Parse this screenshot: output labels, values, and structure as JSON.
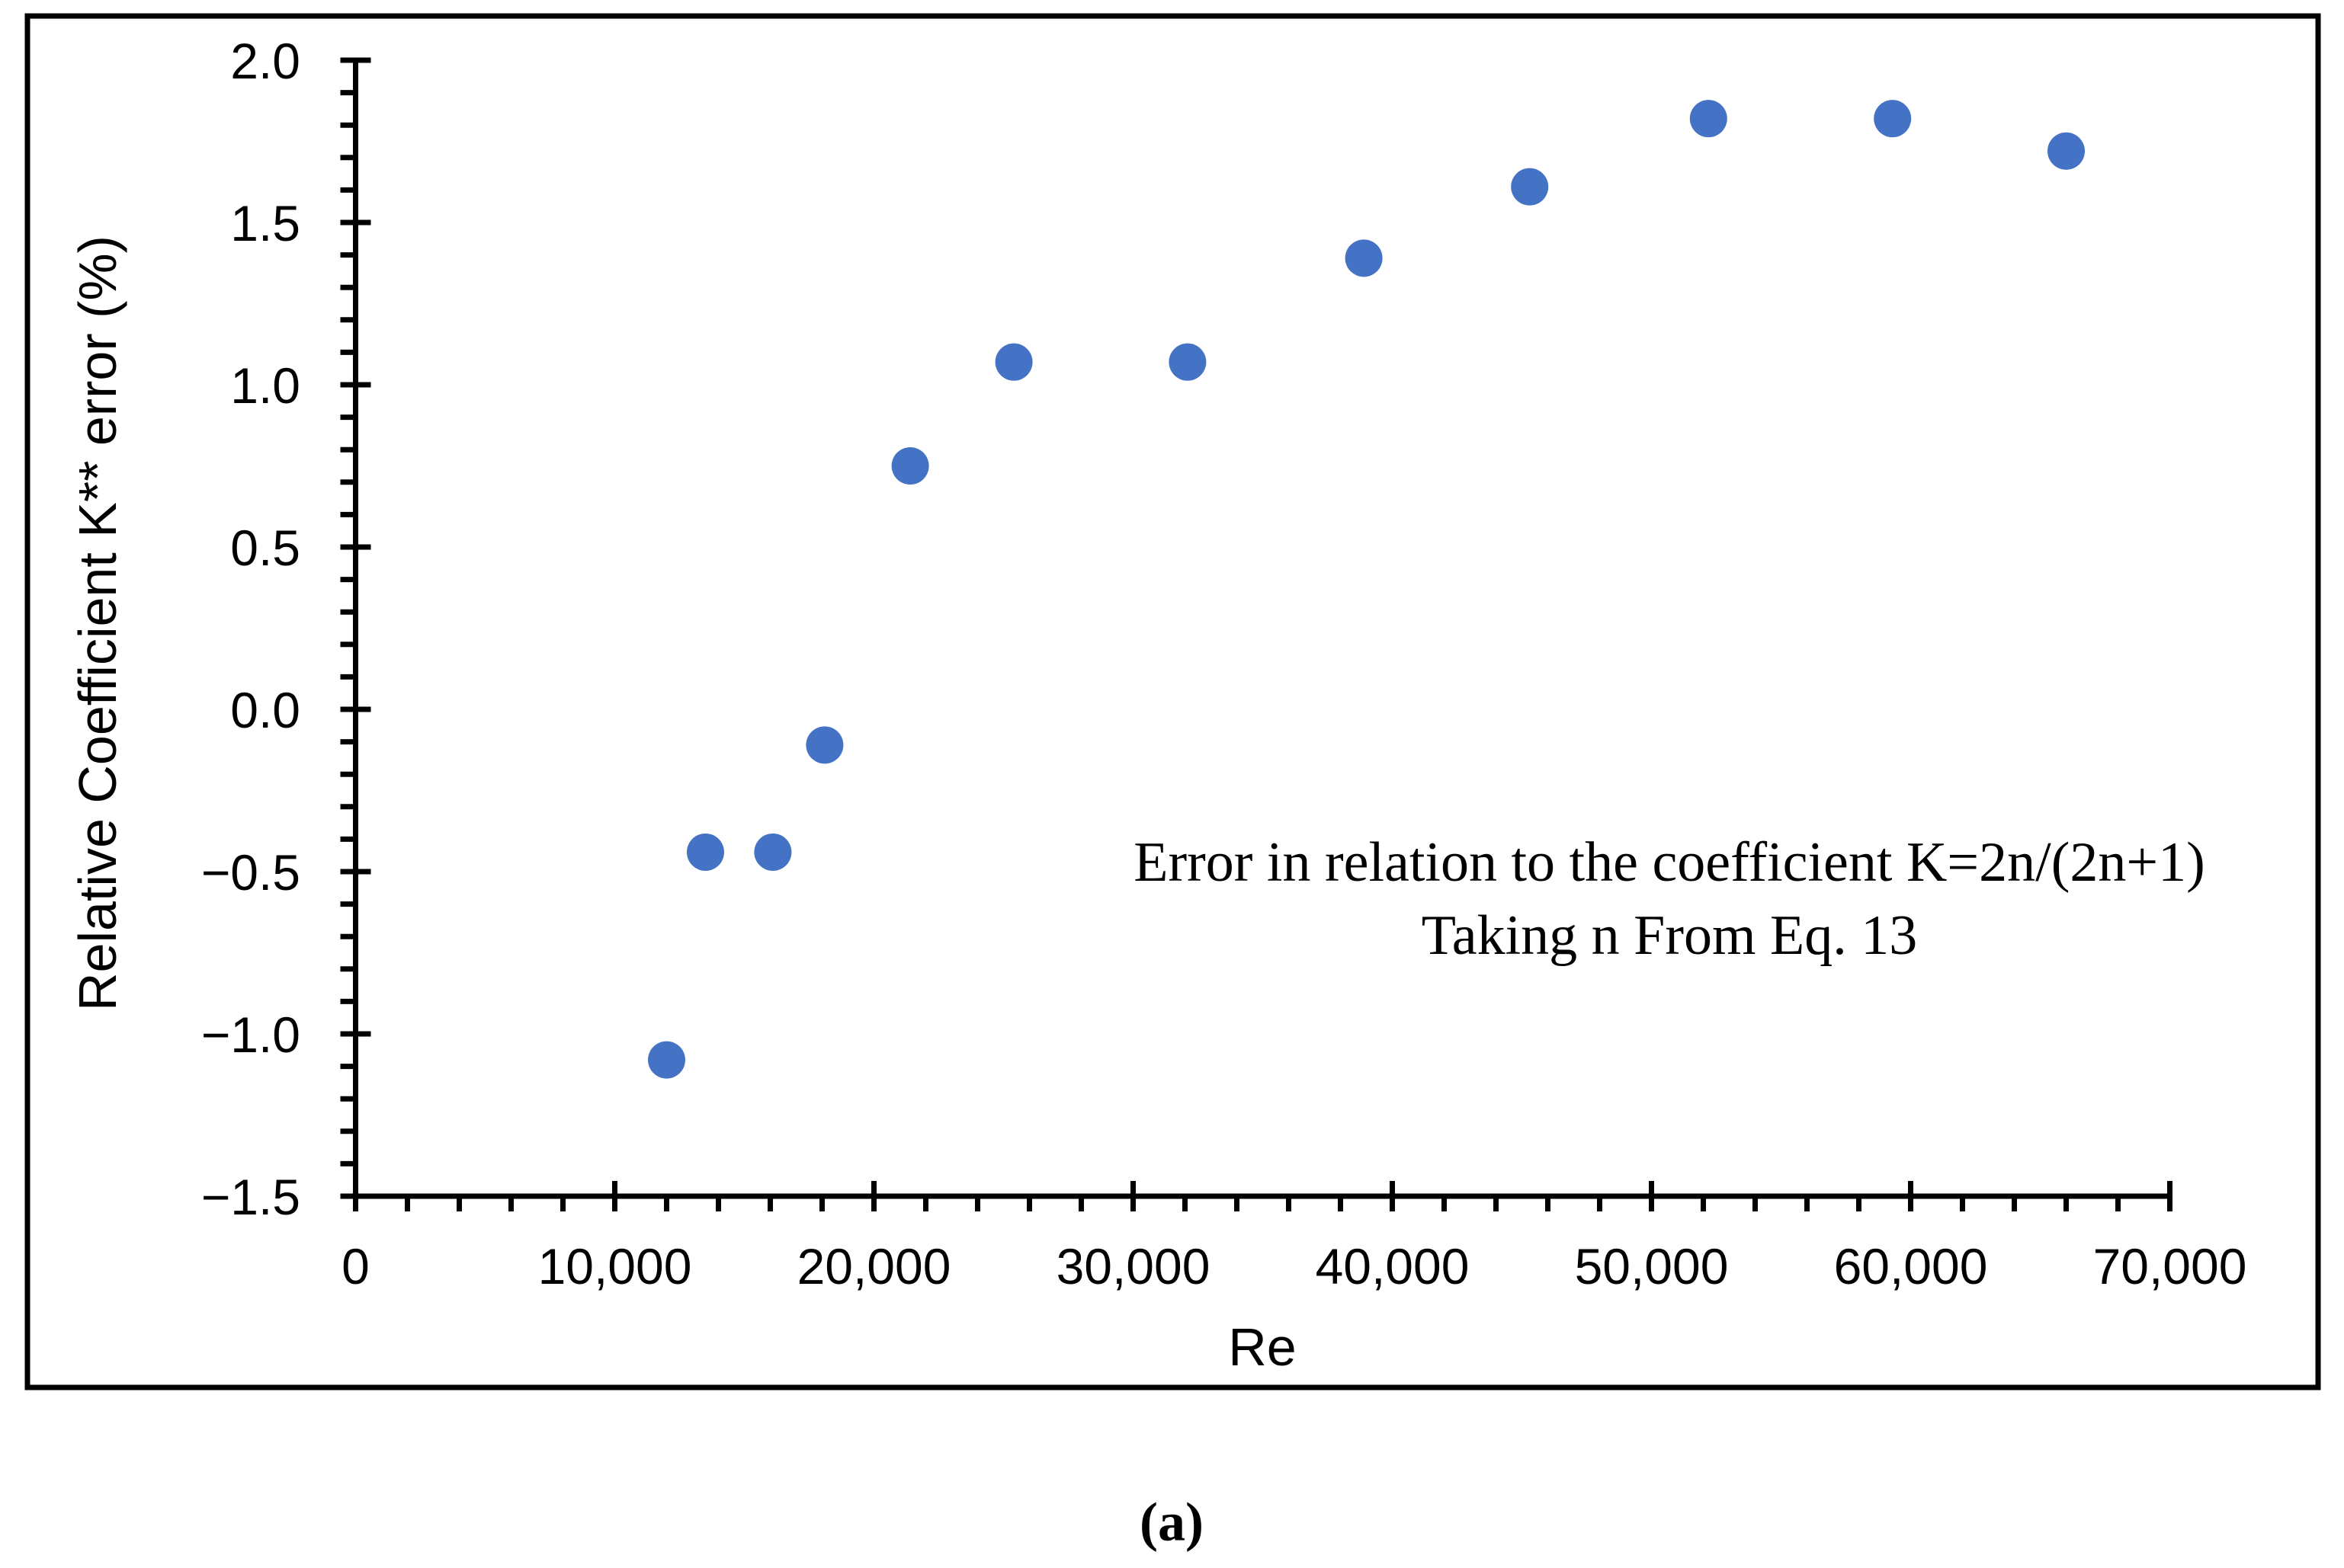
{
  "figure": {
    "caption": "(a)",
    "background": "#ffffff",
    "border_color": "#000000",
    "axis_color": "#000000",
    "text_color": "#000000"
  },
  "chart_data": {
    "type": "scatter",
    "title": "",
    "xlabel": "Re",
    "ylabel": "Relative Coefficient K** error (%)",
    "annotation": {
      "line1": "Error in relation to the coefficient K=2n/(2n+1)",
      "line2": "Taking n From Eq. 13"
    },
    "marker_color": "#4472C4",
    "marker_radius_px": 24.5,
    "grid": false,
    "legend": false,
    "xlim": [
      0,
      70000
    ],
    "ylim": [
      -1.5,
      2.0
    ],
    "x_minor_step": 2000,
    "y_minor_step": 0.1,
    "x_ticks": [
      {
        "value": 0,
        "label": "0"
      },
      {
        "value": 10000,
        "label": "10,000"
      },
      {
        "value": 20000,
        "label": "20,000"
      },
      {
        "value": 30000,
        "label": "30,000"
      },
      {
        "value": 40000,
        "label": "40,000"
      },
      {
        "value": 50000,
        "label": "50,000"
      },
      {
        "value": 60000,
        "label": "60,000"
      },
      {
        "value": 70000,
        "label": "70,000"
      }
    ],
    "y_ticks": [
      {
        "value": 2.0,
        "label": "2.0"
      },
      {
        "value": 1.5,
        "label": "1.5"
      },
      {
        "value": 1.0,
        "label": "1.0"
      },
      {
        "value": 0.5,
        "label": "0.5"
      },
      {
        "value": 0.0,
        "label": "0.0"
      },
      {
        "value": -0.5,
        "label": "−0.5"
      },
      {
        "value": -1.0,
        "label": "−1.0"
      },
      {
        "value": -1.5,
        "label": "−1.5"
      }
    ],
    "points": [
      {
        "x": 12000,
        "y": -1.08
      },
      {
        "x": 13500,
        "y": -0.44
      },
      {
        "x": 16100,
        "y": -0.44
      },
      {
        "x": 18100,
        "y": -0.11
      },
      {
        "x": 21400,
        "y": 0.75
      },
      {
        "x": 25400,
        "y": 1.07
      },
      {
        "x": 32100,
        "y": 1.07
      },
      {
        "x": 38900,
        "y": 1.39
      },
      {
        "x": 45300,
        "y": 1.61
      },
      {
        "x": 52200,
        "y": 1.82
      },
      {
        "x": 59300,
        "y": 1.82
      },
      {
        "x": 66000,
        "y": 1.72
      }
    ]
  }
}
